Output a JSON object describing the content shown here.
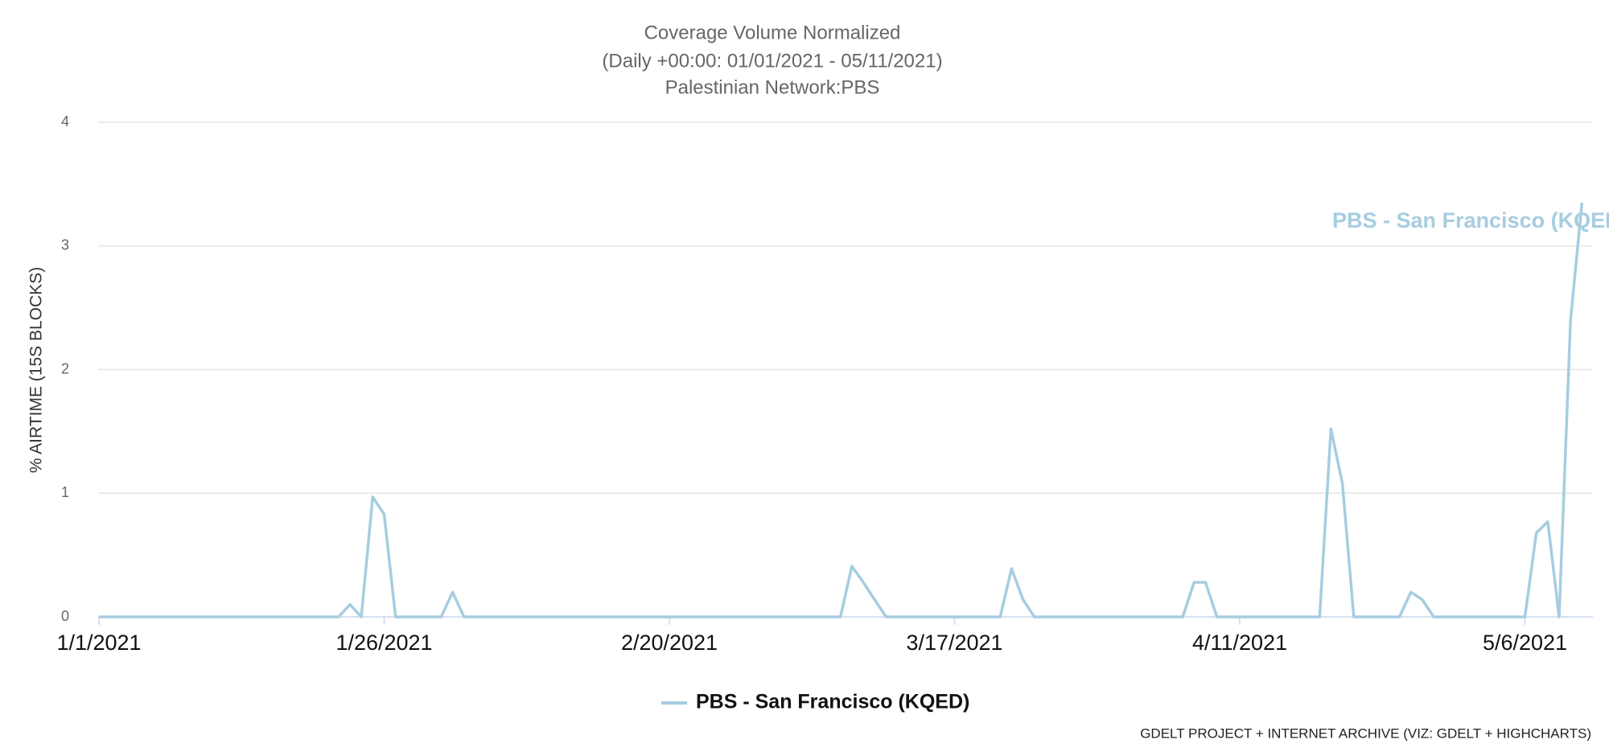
{
  "chart_data": {
    "type": "line",
    "title": "Coverage Volume Normalized",
    "subtitle": [
      "(Daily +00:00: 01/01/2021 - 05/11/2021)",
      "Palestinian Network:PBS"
    ],
    "ylabel": "% AIRTIME (15S BLOCKS)",
    "credits": "GDELT PROJECT + INTERNET ARCHIVE (VIZ: GDELT + HIGHCHARTS)",
    "x": [
      "1/1/2021",
      "1/2/2021",
      "1/3/2021",
      "1/4/2021",
      "1/5/2021",
      "1/6/2021",
      "1/7/2021",
      "1/8/2021",
      "1/9/2021",
      "1/10/2021",
      "1/11/2021",
      "1/12/2021",
      "1/13/2021",
      "1/14/2021",
      "1/15/2021",
      "1/16/2021",
      "1/17/2021",
      "1/18/2021",
      "1/19/2021",
      "1/20/2021",
      "1/21/2021",
      "1/22/2021",
      "1/23/2021",
      "1/24/2021",
      "1/25/2021",
      "1/26/2021",
      "1/27/2021",
      "1/28/2021",
      "1/29/2021",
      "1/30/2021",
      "1/31/2021",
      "2/1/2021",
      "2/2/2021",
      "2/3/2021",
      "2/4/2021",
      "2/5/2021",
      "2/6/2021",
      "2/7/2021",
      "2/8/2021",
      "2/9/2021",
      "2/10/2021",
      "2/11/2021",
      "2/12/2021",
      "2/13/2021",
      "2/14/2021",
      "2/15/2021",
      "2/16/2021",
      "2/17/2021",
      "2/18/2021",
      "2/19/2021",
      "2/20/2021",
      "2/21/2021",
      "2/22/2021",
      "2/23/2021",
      "2/24/2021",
      "2/25/2021",
      "2/26/2021",
      "2/27/2021",
      "2/28/2021",
      "3/1/2021",
      "3/2/2021",
      "3/3/2021",
      "3/4/2021",
      "3/5/2021",
      "3/6/2021",
      "3/7/2021",
      "3/8/2021",
      "3/9/2021",
      "3/10/2021",
      "3/11/2021",
      "3/12/2021",
      "3/13/2021",
      "3/14/2021",
      "3/15/2021",
      "3/16/2021",
      "3/17/2021",
      "3/18/2021",
      "3/19/2021",
      "3/20/2021",
      "3/21/2021",
      "3/22/2021",
      "3/23/2021",
      "3/24/2021",
      "3/25/2021",
      "3/26/2021",
      "3/27/2021",
      "3/28/2021",
      "3/29/2021",
      "3/30/2021",
      "3/31/2021",
      "4/1/2021",
      "4/2/2021",
      "4/3/2021",
      "4/4/2021",
      "4/5/2021",
      "4/6/2021",
      "4/7/2021",
      "4/8/2021",
      "4/9/2021",
      "4/10/2021",
      "4/11/2021",
      "4/12/2021",
      "4/13/2021",
      "4/14/2021",
      "4/15/2021",
      "4/16/2021",
      "4/17/2021",
      "4/18/2021",
      "4/19/2021",
      "4/20/2021",
      "4/21/2021",
      "4/22/2021",
      "4/23/2021",
      "4/24/2021",
      "4/25/2021",
      "4/26/2021",
      "4/27/2021",
      "4/28/2021",
      "4/29/2021",
      "4/30/2021",
      "5/1/2021",
      "5/2/2021",
      "5/3/2021",
      "5/4/2021",
      "5/5/2021",
      "5/6/2021",
      "5/7/2021",
      "5/8/2021",
      "5/9/2021",
      "5/10/2021",
      "5/11/2021"
    ],
    "xticks": [
      "1/1/2021",
      "1/26/2021",
      "2/20/2021",
      "3/17/2021",
      "4/11/2021",
      "5/6/2021"
    ],
    "series": [
      {
        "name": "PBS - San Francisco (KQED)",
        "color": "#a6cde0",
        "values": [
          0,
          0,
          0,
          0,
          0,
          0,
          0,
          0,
          0,
          0,
          0,
          0,
          0,
          0,
          0,
          0,
          0,
          0,
          0,
          0,
          0,
          0,
          0.1,
          0,
          0.97,
          0.83,
          0,
          0,
          0,
          0,
          0,
          0.2,
          0,
          0,
          0,
          0,
          0,
          0,
          0,
          0,
          0,
          0,
          0,
          0,
          0,
          0,
          0,
          0,
          0,
          0,
          0,
          0,
          0,
          0,
          0,
          0,
          0,
          0,
          0,
          0,
          0,
          0,
          0,
          0,
          0,
          0,
          0.41,
          0.28,
          0.14,
          0,
          0,
          0,
          0,
          0,
          0,
          0,
          0,
          0,
          0,
          0,
          0.39,
          0.14,
          0,
          0,
          0,
          0,
          0,
          0,
          0,
          0,
          0,
          0,
          0,
          0,
          0,
          0,
          0.28,
          0.28,
          0,
          0,
          0,
          0,
          0,
          0,
          0,
          0,
          0,
          0,
          1.52,
          1.08,
          0,
          0,
          0,
          0,
          0,
          0.2,
          0.14,
          0,
          0,
          0,
          0,
          0,
          0,
          0,
          0,
          0,
          0.68,
          0.77,
          0,
          2.4,
          3.35
        ]
      }
    ],
    "ylim": [
      0,
      4
    ],
    "yticks": [
      0,
      1,
      2,
      3,
      4
    ],
    "grid": true,
    "legend": "bottom"
  }
}
